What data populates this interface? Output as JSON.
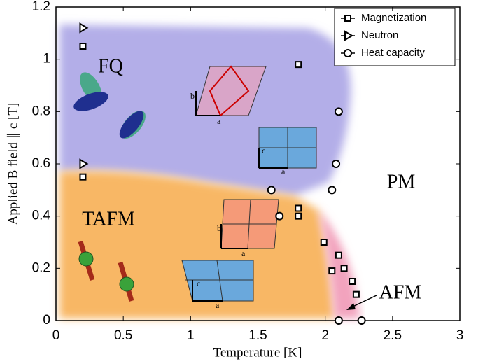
{
  "chart_data": {
    "type": "scatter",
    "xlabel": "Temperature [K]",
    "ylabel": "Applied B field ∥ c [T]",
    "xlim": [
      0,
      3
    ],
    "ylim": [
      0,
      1.2
    ],
    "xticks": [
      0,
      0.5,
      1,
      1.5,
      2,
      2.5,
      3
    ],
    "yticks": [
      0,
      0.2,
      0.4,
      0.6,
      0.8,
      1,
      1.2
    ],
    "legend": "upper right",
    "series": [
      {
        "name": "Magnetization",
        "marker": "square",
        "color": "#000000",
        "x": [
          0.2,
          0.2,
          1.8,
          1.8,
          1.8,
          1.99,
          2.1,
          2.05,
          2.14,
          2.2,
          2.23
        ],
        "values": [
          1.05,
          0.55,
          0.98,
          0.43,
          0.4,
          0.3,
          0.25,
          0.19,
          0.2,
          0.15,
          0.1
        ]
      },
      {
        "name": "Neutron",
        "marker": "triangle",
        "color": "#000000",
        "x": [
          0.2,
          0.2
        ],
        "values": [
          1.12,
          0.6
        ]
      },
      {
        "name": "Heat capacity",
        "marker": "circle",
        "color": "#000000",
        "x": [
          2.1,
          2.08,
          2.05,
          1.6,
          1.66,
          2.1,
          2.27
        ],
        "values": [
          0.8,
          0.6,
          0.5,
          0.5,
          0.4,
          0,
          0
        ]
      }
    ],
    "annotations": [
      "FQ",
      "TAFM",
      "PM",
      "AFM"
    ],
    "insets": [
      {
        "labels": [
          "b",
          "a"
        ]
      },
      {
        "labels": [
          "c",
          "a"
        ]
      },
      {
        "labels": [
          "b",
          "a"
        ]
      },
      {
        "labels": [
          "c",
          "a"
        ]
      }
    ]
  }
}
